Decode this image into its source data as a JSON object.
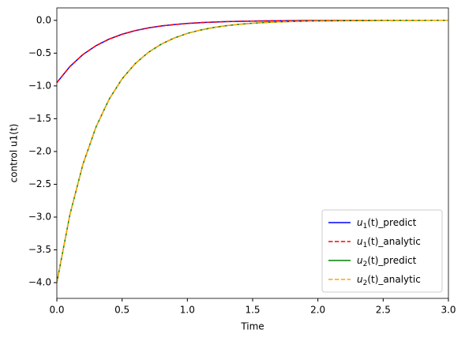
{
  "chart_data": {
    "type": "line",
    "xlabel": "Time",
    "ylabel": "control u1(t)",
    "x": [
      0,
      0.1,
      0.2,
      0.3,
      0.4,
      0.5,
      0.6,
      0.7,
      0.8,
      0.9,
      1.0,
      1.1,
      1.2,
      1.3,
      1.4,
      1.5,
      1.6,
      1.7,
      1.8,
      1.9,
      2.0,
      2.5,
      3.0
    ],
    "series": [
      {
        "name": "u1(t)_predict",
        "color": "#0000ff",
        "dashed": false,
        "values": [
          -0.95,
          -0.704,
          -0.521,
          -0.386,
          -0.286,
          -0.212,
          -0.157,
          -0.116,
          -0.086,
          -0.064,
          -0.047,
          -0.035,
          -0.026,
          -0.019,
          -0.014,
          -0.011,
          -0.008,
          -0.006,
          -0.004,
          -0.003,
          -0.002,
          0,
          0
        ]
      },
      {
        "name": "u1(t)_analytic",
        "color": "#ff0000",
        "dashed": true,
        "values": [
          -0.95,
          -0.704,
          -0.521,
          -0.386,
          -0.286,
          -0.212,
          -0.157,
          -0.116,
          -0.086,
          -0.064,
          -0.047,
          -0.035,
          -0.026,
          -0.019,
          -0.014,
          -0.011,
          -0.008,
          -0.006,
          -0.004,
          -0.003,
          -0.002,
          0,
          0
        ]
      },
      {
        "name": "u2(t)_predict",
        "color": "#008000",
        "dashed": false,
        "values": [
          -4,
          -2.963,
          -2.195,
          -1.626,
          -1.205,
          -0.892,
          -0.661,
          -0.49,
          -0.363,
          -0.269,
          -0.199,
          -0.148,
          -0.109,
          -0.081,
          -0.06,
          -0.044,
          -0.033,
          -0.024,
          -0.018,
          -0.013,
          -0.01,
          -0.001,
          0
        ]
      },
      {
        "name": "u2(t)_analytic",
        "color": "#ffa500",
        "dashed": true,
        "values": [
          -4,
          -2.963,
          -2.195,
          -1.626,
          -1.205,
          -0.892,
          -0.661,
          -0.49,
          -0.363,
          -0.269,
          -0.199,
          -0.148,
          -0.109,
          -0.081,
          -0.06,
          -0.044,
          -0.033,
          -0.024,
          -0.018,
          -0.013,
          -0.01,
          -0.001,
          0
        ]
      }
    ],
    "xlim": [
      0,
      3
    ],
    "xticks": [
      {
        "value": 0,
        "label": "0.0"
      },
      {
        "value": 0.5,
        "label": "0.5"
      },
      {
        "value": 1,
        "label": "1.0"
      },
      {
        "value": 1.5,
        "label": "1.5"
      },
      {
        "value": 2,
        "label": "2.0"
      },
      {
        "value": 2.5,
        "label": "2.5"
      },
      {
        "value": 3,
        "label": "3.0"
      }
    ],
    "ylim": [
      -4.24,
      0.19
    ],
    "yticks": [
      {
        "value": 0,
        "label": "0.0"
      },
      {
        "value": -0.5,
        "label": "−0.5"
      },
      {
        "value": -1,
        "label": "−1.0"
      },
      {
        "value": -1.5,
        "label": "−1.5"
      },
      {
        "value": -2,
        "label": "−2.0"
      },
      {
        "value": -2.5,
        "label": "−2.5"
      },
      {
        "value": -3,
        "label": "−3.0"
      },
      {
        "value": -3.5,
        "label": "−3.5"
      },
      {
        "value": -4,
        "label": "−4.0"
      }
    ],
    "legend": "lower right"
  }
}
